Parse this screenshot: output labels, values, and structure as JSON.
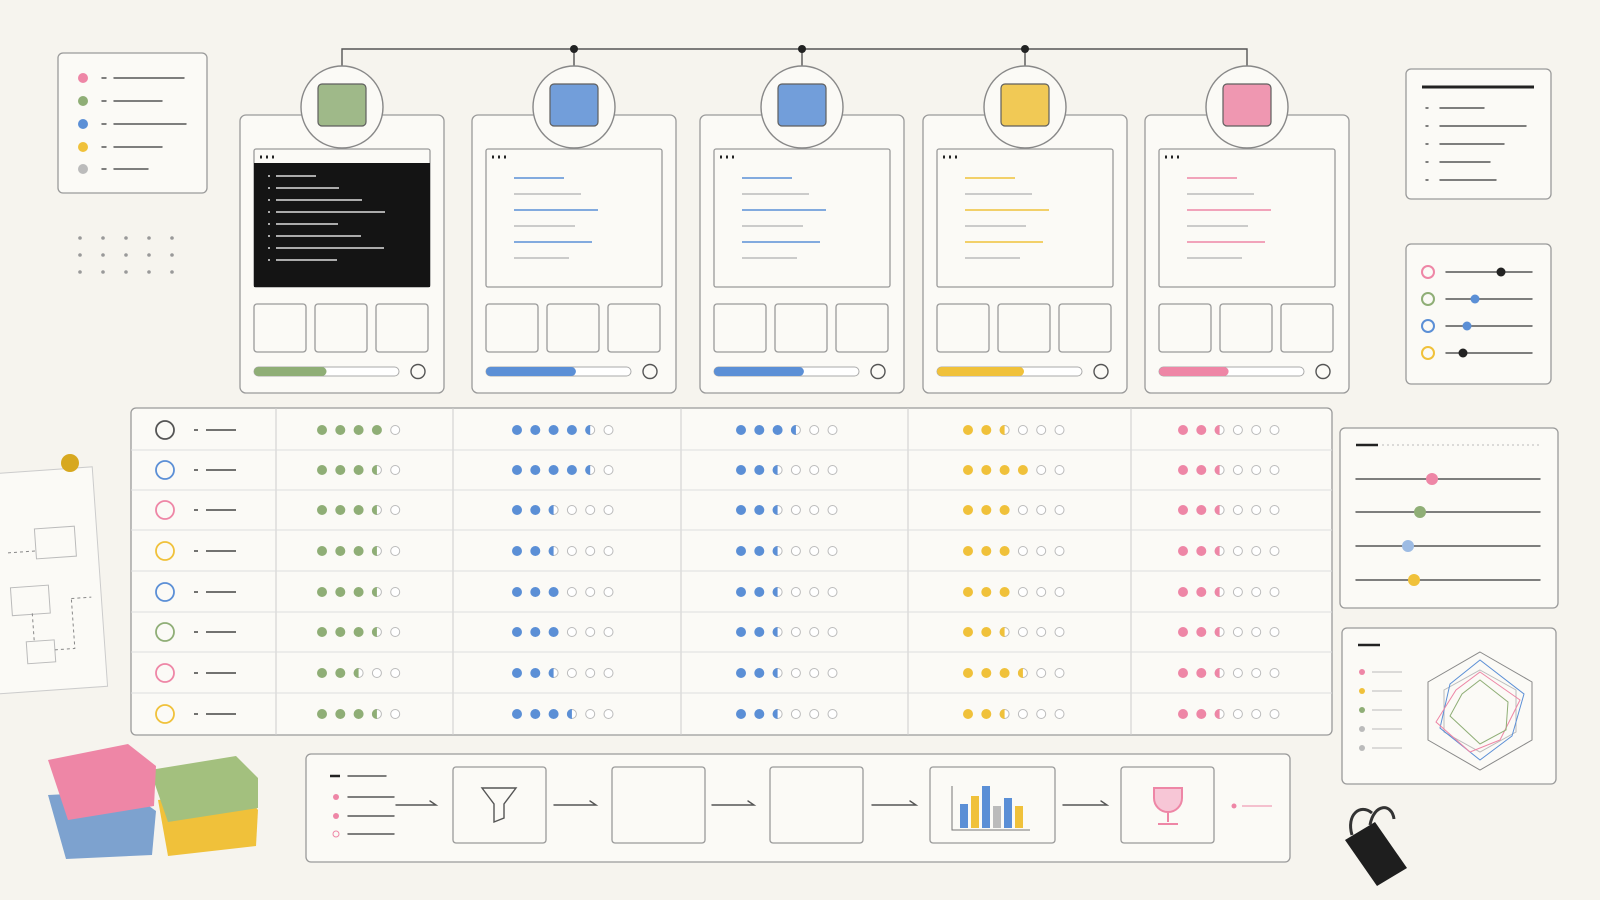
{
  "matrix": {
    "columns": [
      {
        "color": "#8fae76",
        "max": 5,
        "progress": 0.5,
        "ratings": [
          4,
          3.5,
          3.5,
          3.5,
          3.5,
          3.5,
          2.5,
          3.5
        ]
      },
      {
        "color": "#5b8fd6",
        "max": 6,
        "progress": 0.62,
        "ratings": [
          4.5,
          4.5,
          2.5,
          2.5,
          3,
          3,
          2.5,
          3.5
        ]
      },
      {
        "color": "#5b8fd6",
        "max": 6,
        "progress": 0.62,
        "ratings": [
          3.5,
          2.5,
          2.5,
          2.5,
          2.5,
          2.5,
          2.5,
          2.5
        ]
      },
      {
        "color": "#f0c13a",
        "max": 6,
        "progress": 0.6,
        "ratings": [
          2.5,
          4,
          3,
          3,
          3,
          2.5,
          3.5,
          2.5
        ]
      },
      {
        "color": "#ee86a6",
        "max": 6,
        "progress": 0.48,
        "ratings": [
          2.5,
          2.5,
          2.5,
          2.5,
          2.5,
          2.5,
          2.5,
          2.5
        ]
      }
    ]
  }
}
